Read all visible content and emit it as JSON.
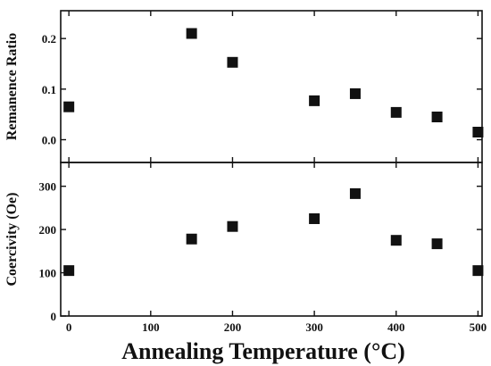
{
  "chart_data": [
    {
      "type": "scatter",
      "panel": "top",
      "ylabel": "Remanence Ratio",
      "xlim": [
        -10,
        505
      ],
      "ylim": [
        -0.045,
        0.255
      ],
      "yticks": [
        0.0,
        0.1,
        0.2
      ],
      "ytick_labels": [
        "0.0",
        "0.1",
        "0.2"
      ],
      "grid": false,
      "x": [
        0,
        150,
        200,
        300,
        350,
        400,
        450,
        500
      ],
      "y": [
        0.065,
        0.21,
        0.153,
        0.077,
        0.091,
        0.054,
        0.045,
        0.015
      ],
      "marker": "square",
      "color": "#111111"
    },
    {
      "type": "scatter",
      "panel": "bottom",
      "ylabel": "Coercivity (Oe)",
      "xlabel": "Annealing Temperature (°C)",
      "xlim": [
        -10,
        505
      ],
      "ylim": [
        0,
        355
      ],
      "xticks": [
        0,
        100,
        200,
        300,
        400,
        500
      ],
      "xtick_labels": [
        "0",
        "100",
        "200",
        "300",
        "400",
        "500"
      ],
      "yticks": [
        0,
        100,
        200,
        300
      ],
      "ytick_labels": [
        "0",
        "100",
        "200",
        "300"
      ],
      "grid": false,
      "x": [
        0,
        150,
        200,
        300,
        350,
        400,
        450,
        500
      ],
      "y": [
        105,
        178,
        207,
        225,
        283,
        175,
        167,
        105
      ],
      "marker": "square",
      "color": "#111111"
    }
  ]
}
